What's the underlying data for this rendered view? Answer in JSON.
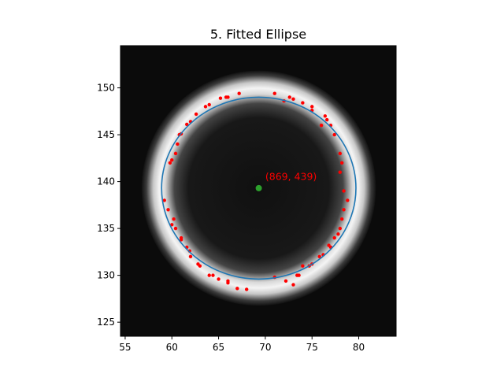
{
  "chart_data": {
    "type": "scatter",
    "title": "5. Fitted Ellipse",
    "xlabel": "",
    "ylabel": "",
    "xlim": [
      54.5,
      84
    ],
    "ylim": [
      123.5,
      154.5
    ],
    "x_ticks": [
      "55",
      "60",
      "65",
      "70",
      "75",
      "80"
    ],
    "y_ticks": [
      "125",
      "130",
      "135",
      "140",
      "145",
      "150"
    ],
    "grid": false,
    "legend": "none",
    "background_image": {
      "kind": "grayscale ring",
      "center": [
        69.3,
        139.3
      ],
      "ring_radius": 10.3,
      "ring_width": 1.4
    },
    "ellipse": {
      "center": [
        69.3,
        139.3
      ],
      "semi_axis_x": 10.4,
      "semi_axis_y": 9.7,
      "color": "#1f77b4"
    },
    "center_point": {
      "x": 69.3,
      "y": 139.3,
      "color": "#2ca02c"
    },
    "annotation": {
      "text": "(869, 439)",
      "x": 70.0,
      "y": 140.0,
      "color": "#ff0000"
    },
    "edge_points": {
      "color": "#ff0000",
      "points": [
        [
          67.2,
          149.4
        ],
        [
          65.8,
          149.0
        ],
        [
          65.2,
          148.9
        ],
        [
          64.0,
          148.2
        ],
        [
          63.6,
          148.0
        ],
        [
          62.6,
          147.2
        ],
        [
          62.0,
          146.4
        ],
        [
          61.6,
          146.1
        ],
        [
          61.0,
          145.1
        ],
        [
          60.8,
          145.0
        ],
        [
          60.6,
          144.0
        ],
        [
          60.4,
          143.0
        ],
        [
          60.0,
          142.3
        ],
        [
          59.8,
          142.0
        ],
        [
          59.2,
          138.0
        ],
        [
          59.6,
          137.0
        ],
        [
          60.2,
          136.0
        ],
        [
          60.0,
          135.4
        ],
        [
          60.4,
          135.0
        ],
        [
          61.0,
          134.0
        ],
        [
          61.0,
          133.8
        ],
        [
          61.6,
          133.0
        ],
        [
          61.9,
          132.6
        ],
        [
          62.0,
          132.0
        ],
        [
          62.8,
          131.2
        ],
        [
          63.0,
          131.0
        ],
        [
          64.0,
          130.0
        ],
        [
          64.4,
          130.0
        ],
        [
          65.0,
          129.6
        ],
        [
          66.0,
          129.4
        ],
        [
          66.0,
          129.2
        ],
        [
          67.0,
          128.6
        ],
        [
          68.0,
          128.5
        ],
        [
          71.0,
          129.8
        ],
        [
          72.2,
          129.4
        ],
        [
          73.0,
          129.0
        ],
        [
          73.4,
          130.0
        ],
        [
          73.6,
          130.0
        ],
        [
          74.0,
          131.0
        ],
        [
          74.7,
          131.0
        ],
        [
          75.0,
          131.2
        ],
        [
          75.8,
          132.0
        ],
        [
          76.2,
          132.2
        ],
        [
          76.8,
          133.2
        ],
        [
          77.0,
          133.0
        ],
        [
          77.4,
          134.0
        ],
        [
          77.8,
          134.4
        ],
        [
          78.0,
          135.0
        ],
        [
          78.2,
          136.0
        ],
        [
          78.4,
          137.0
        ],
        [
          78.8,
          138.0
        ],
        [
          78.4,
          139.0
        ],
        [
          78.0,
          141.0
        ],
        [
          78.2,
          142.0
        ],
        [
          78.0,
          143.0
        ],
        [
          77.4,
          145.0
        ],
        [
          77.0,
          146.0
        ],
        [
          76.6,
          146.6
        ],
        [
          76.4,
          147.0
        ],
        [
          75.0,
          148.0
        ],
        [
          75.0,
          147.6
        ],
        [
          73.0,
          148.8
        ],
        [
          72.6,
          149.0
        ],
        [
          72.0,
          148.6
        ],
        [
          71.0,
          149.4
        ],
        [
          74.0,
          148.4
        ],
        [
          66.0,
          149.0
        ],
        [
          76.0,
          146.0
        ]
      ]
    }
  }
}
